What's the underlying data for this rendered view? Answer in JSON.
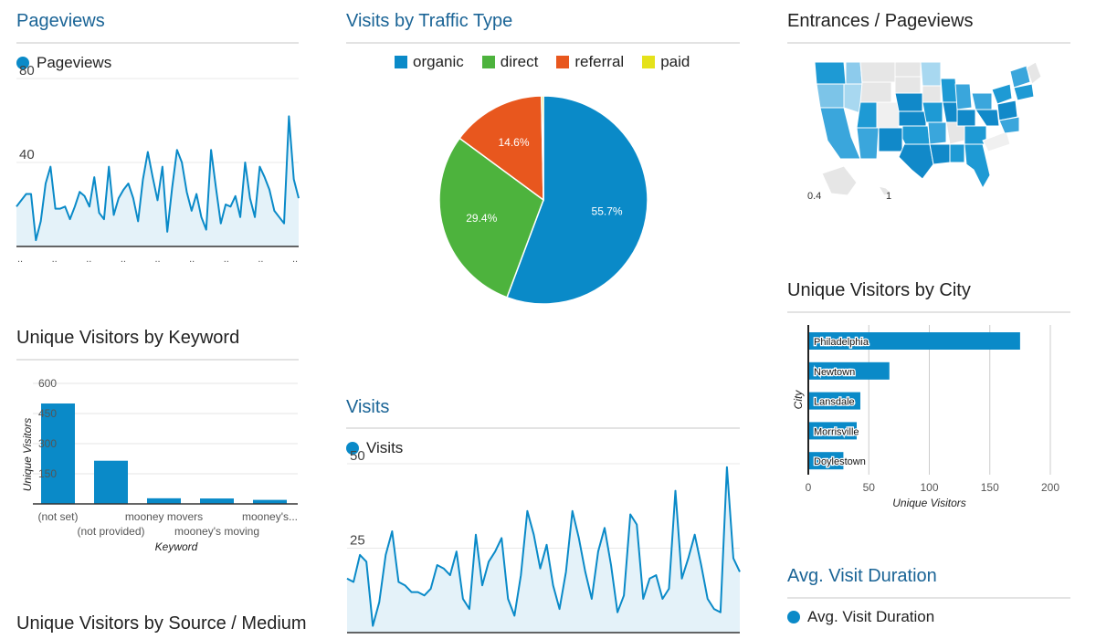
{
  "panels": {
    "pageviews_title": "Pageviews",
    "traffic_title": "Visits by Traffic Type",
    "entrances_title": "Entrances / Pageviews",
    "city_title": "Unique Visitors by City",
    "keyword_title": "Unique Visitors by Keyword",
    "visits_title": "Visits",
    "duration_title": "Avg. Visit Duration",
    "source_title": "Unique Visitors by Source / Medium"
  },
  "colors": {
    "accent": "#0a8ac8",
    "title_blue": "#1a6496",
    "organic": "#0a8ac8",
    "direct": "#4db33d",
    "referral": "#e8571e",
    "paid": "#e5e21a"
  },
  "chart_data": [
    {
      "id": "pageviews",
      "type": "area",
      "title": "Pageviews",
      "legend": [
        "Pageviews"
      ],
      "y_ticks": [
        "80",
        "40"
      ],
      "ylim": [
        0,
        80
      ],
      "x_ticks": [
        "..",
        "..",
        "..",
        "..",
        "..",
        "..",
        "..",
        "..",
        ".."
      ],
      "values": [
        19,
        22,
        25,
        25,
        3,
        12,
        30,
        38,
        18,
        18,
        19,
        13,
        19,
        26,
        24,
        19,
        33,
        16,
        13,
        38,
        15,
        23,
        27,
        30,
        23,
        12,
        32,
        45,
        33,
        22,
        38,
        7,
        28,
        46,
        40,
        26,
        17,
        25,
        14,
        8,
        46,
        28,
        11,
        20,
        19,
        24,
        14,
        40,
        23,
        14,
        38,
        33,
        27,
        17,
        14,
        11,
        62,
        32,
        23
      ]
    },
    {
      "id": "traffic",
      "type": "pie",
      "title": "Visits by Traffic Type",
      "legend": [
        "organic",
        "direct",
        "referral",
        "paid"
      ],
      "values": [
        55.7,
        29.4,
        14.6,
        0.3
      ],
      "labels": [
        "55.7%",
        "29.4%",
        "14.6%",
        ""
      ]
    },
    {
      "id": "entrances",
      "type": "heatmap",
      "title": "Entrances / Pageviews",
      "scale_labels": [
        "0.4",
        "1"
      ]
    },
    {
      "id": "city",
      "type": "bar",
      "title": "Unique Visitors by City",
      "orientation": "horizontal",
      "categories": [
        "Philadelphia",
        "Newtown",
        "Lansdale",
        "Morrisville",
        "Doylestown"
      ],
      "values": [
        175,
        67,
        43,
        40,
        29
      ],
      "xlim": [
        0,
        200
      ],
      "x_ticks": [
        "0",
        "50",
        "100",
        "150",
        "200"
      ],
      "xlabel": "Unique Visitors",
      "ylabel": "City"
    },
    {
      "id": "keyword",
      "type": "bar",
      "title": "Unique Visitors by Keyword",
      "categories": [
        "(not set)",
        "(not provided)",
        "mooney movers",
        "mooney's moving",
        "mooney's..."
      ],
      "values": [
        500,
        215,
        28,
        27,
        20
      ],
      "ylim": [
        0,
        600
      ],
      "y_ticks": [
        "600",
        "450",
        "300",
        "150"
      ],
      "xlabel": "Keyword",
      "ylabel": "Unique Visitors"
    },
    {
      "id": "visits",
      "type": "area",
      "title": "Visits",
      "legend": [
        "Visits"
      ],
      "y_ticks": [
        "50",
        "25"
      ],
      "ylim": [
        0,
        50
      ],
      "values": [
        16,
        15,
        23,
        21,
        2,
        9,
        23,
        30,
        15,
        14,
        12,
        12,
        11,
        13,
        20,
        19,
        17,
        24,
        10,
        7,
        29,
        14,
        21,
        24,
        28,
        10,
        5,
        17,
        36,
        29,
        19,
        26,
        14,
        7,
        18,
        36,
        28,
        18,
        10,
        24,
        31,
        20,
        6,
        11,
        35,
        32,
        10,
        16,
        17,
        10,
        13,
        42,
        16,
        22,
        29,
        20,
        10,
        7,
        6,
        49,
        22,
        18
      ]
    },
    {
      "id": "duration",
      "type": "line",
      "title": "Avg. Visit Duration",
      "legend": [
        "Avg. Visit Duration"
      ]
    }
  ]
}
